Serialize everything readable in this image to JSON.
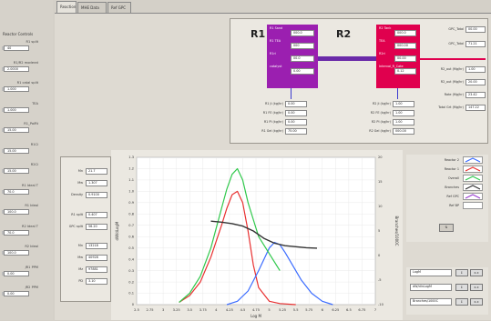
{
  "tabs": [
    "Reaction",
    "MHE Data",
    "Ref GPC"
  ],
  "sidebar": {
    "title": "Reactor Controls",
    "items": [
      {
        "label": "R1 split",
        "value": "40"
      },
      {
        "label": "R1/R2 moderat",
        "value": "2.0000"
      },
      {
        "label": "R1 catal split",
        "value": "1.000"
      },
      {
        "label": "TEA",
        "value": "1.000"
      },
      {
        "label": "R1_PolRt",
        "value": "15.00"
      },
      {
        "label": "R1Ci",
        "value": "15.00"
      },
      {
        "label": "R2Ci",
        "value": "15.00"
      },
      {
        "label": "R1 Ideal T",
        "value": "70.0"
      },
      {
        "label": "R1 Ideal",
        "value": "100.0"
      },
      {
        "label": "R2 Ideal T",
        "value": "70.0"
      },
      {
        "label": "R2 Ideal",
        "value": "100.0"
      },
      {
        "label": "JR1 PPM",
        "value": "0.00"
      },
      {
        "label": "JR2 PPM",
        "value": "0.00"
      }
    ]
  },
  "flowsheet": {
    "r1_title": "R1",
    "r2_title": "R2",
    "r1_fields": [
      {
        "label": "R1 Sand",
        "value": "000.0"
      },
      {
        "label": "R1 TEA",
        "value": "000"
      },
      {
        "label": "R1ri",
        "value": "00.0"
      },
      {
        "label": "catalyst",
        "value": "0.00"
      }
    ],
    "r2_fields": [
      {
        "label": "R2 Tank",
        "value": "000.0"
      },
      {
        "label": "TEA",
        "value": "000.00"
      },
      {
        "label": "R2ri",
        "value": "00.00"
      },
      {
        "label": "Interval_R_Cate",
        "value": "0.12"
      }
    ],
    "r1_outputs": [
      {
        "label": "R1 Ji (kg/hr)",
        "value": "0.00"
      },
      {
        "label": "R1 FE (kg/hr)",
        "value": "0.00"
      },
      {
        "label": "R1 PI (kg/hr)",
        "value": "0.00"
      },
      {
        "label": "R1 Gel (kg/hr)",
        "value": "75.00"
      }
    ],
    "r2_outputs": [
      {
        "label": "R2 Ji (kg/hr)",
        "value": "1.00"
      },
      {
        "label": "R2 FE (kg/hr)",
        "value": "1.00"
      },
      {
        "label": "R2 PI (kg/hr)",
        "value": "1.00"
      },
      {
        "label": "R2 Gel (kg/hr)",
        "value": "000.00"
      }
    ],
    "totals": [
      {
        "label": "GPC_Total",
        "value": "00.00"
      },
      {
        "label": "GPC_Total",
        "value": "71.21"
      }
    ],
    "r2_stats": [
      {
        "label": "R2_out (Mg/hr)",
        "value": "1.00"
      },
      {
        "label": "R2_out (Mg/hr)",
        "value": "20.00"
      },
      {
        "label": "Rate (Mg/hr)",
        "value": "23.42"
      },
      {
        "label": "Total Grt (Mg/hr)",
        "value": "147.22"
      }
    ]
  },
  "stats": [
    {
      "label": "Mn",
      "value": "21.7"
    },
    {
      "label": "Mw",
      "value": "1.307"
    },
    {
      "label": "Density",
      "value": "0.9100"
    },
    {
      "label": "R1 split",
      "value": "0.407"
    },
    {
      "label": "GPC split",
      "value": "56.20"
    },
    {
      "label": "Mn",
      "value": "13218"
    },
    {
      "label": "Mw",
      "value": "40928"
    },
    {
      "label": "Mz",
      "value": "97881"
    },
    {
      "label": "PD",
      "value": "3.10"
    }
  ],
  "legend": [
    {
      "name": "Reactor 2",
      "color": "#3b6cff"
    },
    {
      "name": "Reactor 1",
      "color": "#e83030"
    },
    {
      "name": "Overall",
      "color": "#2fc84b"
    },
    {
      "name": "Branches",
      "color": "#333333"
    },
    {
      "name": "Ref GPC",
      "color": "#9b3fd0"
    },
    {
      "name": "Ref BP",
      "color": "#ffffff"
    }
  ],
  "controls": {
    "fields": [
      "LogM",
      "dW/dlnLogM",
      "Branches/1000C"
    ]
  },
  "colors": {
    "r1_block": "#9b1fb0",
    "r2_block": "#e0004e",
    "connector": "#6a2aa8"
  },
  "chart_data": {
    "type": "line",
    "xlabel": "Log M",
    "ylabel": "dW/dLogM",
    "y2label": "Branches/1000C",
    "xlim": [
      2.5,
      7.0
    ],
    "ylim": [
      0.0,
      1.3
    ],
    "y2lim": [
      -10,
      20
    ],
    "x_ticks": [
      "2.5",
      "2.75",
      "3",
      "3.25",
      "3.5",
      "3.75",
      "4",
      "4.25",
      "4.5",
      "4.75",
      "5",
      "5.25",
      "5.5",
      "5.75",
      "6",
      "6.25",
      "6.5",
      "6.75",
      "7"
    ],
    "y_ticks": [
      "0",
      "0.1",
      "0.2",
      "0.3",
      "0.4",
      "0.5",
      "0.6",
      "0.7",
      "0.8",
      "0.9",
      "1.0",
      "1.1",
      "1.2",
      "1.3"
    ],
    "y2_ticks": [
      "-10",
      "-5",
      "0",
      "5",
      "10",
      "15",
      "20"
    ],
    "series": [
      {
        "name": "Reactor 1",
        "color": "#e83030",
        "x": [
          3.3,
          3.5,
          3.7,
          3.9,
          4.1,
          4.2,
          4.3,
          4.4,
          4.5,
          4.6,
          4.7,
          4.8,
          5.0,
          5.2,
          5.5
        ],
        "y": [
          0.02,
          0.08,
          0.2,
          0.42,
          0.7,
          0.85,
          0.97,
          1.0,
          0.9,
          0.65,
          0.35,
          0.15,
          0.03,
          0.01,
          0.0
        ]
      },
      {
        "name": "Reactor 2",
        "color": "#3b6cff",
        "x": [
          4.2,
          4.4,
          4.6,
          4.8,
          5.0,
          5.1,
          5.2,
          5.3,
          5.4,
          5.6,
          5.8,
          6.0,
          6.2
        ],
        "y": [
          0.0,
          0.03,
          0.12,
          0.3,
          0.5,
          0.55,
          0.53,
          0.46,
          0.38,
          0.22,
          0.1,
          0.03,
          0.0
        ]
      },
      {
        "name": "Overall",
        "color": "#2fc84b",
        "x": [
          3.3,
          3.5,
          3.7,
          3.9,
          4.1,
          4.2,
          4.3,
          4.4,
          4.5,
          4.6,
          4.7,
          4.8,
          5.0,
          5.2
        ],
        "y": [
          0.02,
          0.1,
          0.25,
          0.5,
          0.85,
          1.02,
          1.15,
          1.2,
          1.1,
          0.9,
          0.75,
          0.6,
          0.45,
          0.3
        ]
      },
      {
        "name": "Branches",
        "color": "#333333",
        "axis": "y2",
        "x": [
          3.9,
          4.1,
          4.3,
          4.5,
          4.7,
          4.9,
          5.1,
          5.3,
          5.5,
          5.7,
          5.9
        ],
        "y": [
          7.0,
          6.8,
          6.5,
          6.0,
          5.0,
          3.5,
          2.5,
          2.0,
          1.8,
          1.6,
          1.5
        ]
      }
    ]
  }
}
